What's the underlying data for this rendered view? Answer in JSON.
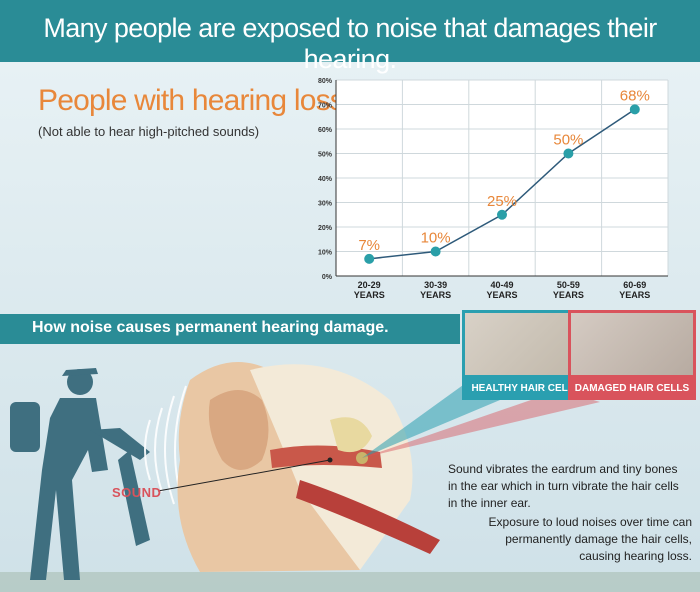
{
  "banner": {
    "title": "Many people are exposed to noise that damages their hearing."
  },
  "headline": "People with hearing loss.",
  "subheadline": "(Not able to hear high-pitched sounds)",
  "chart_data": {
    "type": "line",
    "categories": [
      "20-29 YEARS",
      "30-39 YEARS",
      "40-49 YEARS",
      "50-59 YEARS",
      "60-69 YEARS"
    ],
    "category_lines": [
      [
        "20-29",
        "YEARS"
      ],
      [
        "30-39",
        "YEARS"
      ],
      [
        "40-49",
        "YEARS"
      ],
      [
        "50-59",
        "YEARS"
      ],
      [
        "60-69",
        "YEARS"
      ]
    ],
    "values": [
      7,
      10,
      25,
      50,
      68
    ],
    "data_labels": [
      "7%",
      "10%",
      "25%",
      "50%",
      "68%"
    ],
    "y_ticks": [
      "0%",
      "10%",
      "20%",
      "30%",
      "40%",
      "50%",
      "60%",
      "70%",
      "80%"
    ],
    "ylim": [
      0,
      80
    ],
    "grid": true,
    "colors": {
      "line": "#2e5a7a",
      "marker": "#2a9fa8",
      "label": "#e8873a"
    }
  },
  "section": {
    "title": "How noise causes permanent hearing damage."
  },
  "cells": {
    "healthy_label": "HEALTHY HAIR CELLS",
    "damaged_label": "DAMAGED HAIR CELLS"
  },
  "sound_label": "SOUND",
  "description": {
    "p1": "Sound vibrates the eardrum and tiny bones in the ear which in turn vibrate the hair cells in the inner ear.",
    "p2": "Exposure to loud noises over time can permanently damage the hair cells, causing hearing loss."
  },
  "colors": {
    "teal": "#2a8c96",
    "orange": "#e8873a",
    "red": "#d9535c",
    "silhouette": "#3f6f80"
  }
}
